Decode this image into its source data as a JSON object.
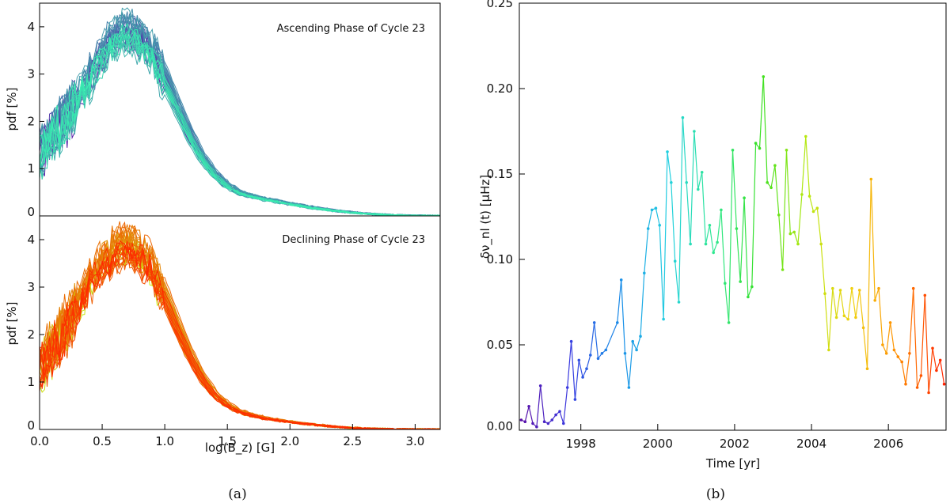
{
  "chart_data": [
    {
      "type": "line",
      "panel": "a-top",
      "annotation": "Ascending Phase of Cycle 23",
      "ylabel": "pdf [%]",
      "xlim": [
        0.0,
        3.2
      ],
      "ylim": [
        0,
        4.5
      ],
      "yticks": [
        "0",
        "1",
        "2",
        "3",
        "4"
      ],
      "color_range": [
        "#5a10a8",
        "#38f0b0"
      ],
      "curve_count": 32,
      "mean_curve": {
        "x": [
          0.0,
          0.1,
          0.2,
          0.3,
          0.4,
          0.5,
          0.6,
          0.7,
          0.8,
          0.9,
          1.0,
          1.1,
          1.2,
          1.3,
          1.4,
          1.5,
          1.6,
          1.7,
          1.8,
          2.0,
          2.2,
          2.4,
          2.6,
          2.8,
          3.0,
          3.2
        ],
        "y": [
          1.3,
          1.7,
          2.0,
          2.4,
          2.9,
          3.4,
          3.75,
          3.9,
          3.75,
          3.5,
          2.95,
          2.35,
          1.75,
          1.25,
          0.9,
          0.65,
          0.5,
          0.42,
          0.36,
          0.26,
          0.17,
          0.1,
          0.05,
          0.02,
          0.005,
          0.0
        ]
      }
    },
    {
      "type": "line",
      "panel": "a-bottom",
      "annotation": "Declining Phase of Cycle 23",
      "ylabel": "pdf [%]",
      "xlabel": "log(B_z) [G]",
      "xlim": [
        0.0,
        3.2
      ],
      "ylim": [
        0,
        4.5
      ],
      "xticks": [
        "0.0",
        "0.5",
        "1.0",
        "1.5",
        "2.0",
        "2.5",
        "3.0"
      ],
      "yticks": [
        "0",
        "1",
        "2",
        "3",
        "4"
      ],
      "color_range": [
        "#c8ea10",
        "#ff2800"
      ],
      "curve_count": 32,
      "mean_curve": {
        "x": [
          0.0,
          0.1,
          0.2,
          0.3,
          0.4,
          0.5,
          0.6,
          0.7,
          0.8,
          0.9,
          1.0,
          1.1,
          1.2,
          1.3,
          1.4,
          1.5,
          1.6,
          1.7,
          1.8,
          2.0,
          2.2,
          2.4,
          2.6,
          2.8,
          3.0,
          3.2
        ],
        "y": [
          1.25,
          1.7,
          2.1,
          2.6,
          3.1,
          3.5,
          3.8,
          3.9,
          3.75,
          3.4,
          2.85,
          2.2,
          1.6,
          1.1,
          0.75,
          0.52,
          0.38,
          0.3,
          0.24,
          0.16,
          0.1,
          0.05,
          0.02,
          0.008,
          0.002,
          0.0
        ]
      }
    },
    {
      "type": "line",
      "panel": "b",
      "xlabel": "Time [yr]",
      "ylabel": "δν_nl (t) [μHz]",
      "xlim": [
        1996.4,
        2007.5
      ],
      "ylim": [
        0,
        0.25
      ],
      "xticks": [
        "1998",
        "2000",
        "2002",
        "2004",
        "2006"
      ],
      "yticks": [
        "0.00",
        "0.05",
        "0.10",
        "0.15",
        "0.20",
        "0.25"
      ],
      "color_range": [
        "#5a10a8",
        "#ff2000"
      ],
      "x": [
        1996.45,
        1996.55,
        1996.65,
        1996.75,
        1996.85,
        1996.95,
        1997.05,
        1997.15,
        1997.25,
        1997.35,
        1997.45,
        1997.55,
        1997.65,
        1997.75,
        1997.85,
        1997.95,
        1998.05,
        1998.15,
        1998.25,
        1998.35,
        1998.45,
        1998.55,
        1998.65,
        1998.95,
        1999.05,
        1999.15,
        1999.25,
        1999.35,
        1999.45,
        1999.55,
        1999.65,
        1999.75,
        1999.85,
        1999.95,
        2000.05,
        2000.15,
        2000.25,
        2000.35,
        2000.45,
        2000.55,
        2000.65,
        2000.75,
        2000.85,
        2000.95,
        2001.05,
        2001.15,
        2001.25,
        2001.35,
        2001.45,
        2001.55,
        2001.65,
        2001.75,
        2001.85,
        2001.95,
        2002.05,
        2002.15,
        2002.25,
        2002.35,
        2002.45,
        2002.55,
        2002.65,
        2002.75,
        2002.85,
        2002.95,
        2003.05,
        2003.15,
        2003.25,
        2003.35,
        2003.45,
        2003.55,
        2003.65,
        2003.75,
        2003.85,
        2003.95,
        2004.05,
        2004.15,
        2004.25,
        2004.35,
        2004.45,
        2004.55,
        2004.65,
        2004.75,
        2004.85,
        2004.95,
        2005.05,
        2005.15,
        2005.25,
        2005.35,
        2005.45,
        2005.55,
        2005.65,
        2005.75,
        2005.85,
        2005.95,
        2006.05,
        2006.15,
        2006.25,
        2006.35,
        2006.45,
        2006.55,
        2006.65,
        2006.75,
        2006.85,
        2006.95,
        2007.05,
        2007.15,
        2007.25,
        2007.35,
        2007.45
      ],
      "y": [
        0.006,
        0.005,
        0.014,
        0.004,
        0.002,
        0.026,
        0.005,
        0.004,
        0.006,
        0.009,
        0.011,
        0.004,
        0.025,
        0.052,
        0.018,
        0.041,
        0.031,
        0.036,
        0.044,
        0.063,
        0.042,
        0.045,
        0.047,
        0.063,
        0.088,
        0.045,
        0.025,
        0.052,
        0.047,
        0.055,
        0.092,
        0.118,
        0.129,
        0.13,
        0.12,
        0.065,
        0.163,
        0.145,
        0.099,
        0.075,
        0.183,
        0.145,
        0.109,
        0.175,
        0.141,
        0.151,
        0.109,
        0.12,
        0.104,
        0.11,
        0.129,
        0.086,
        0.063,
        0.164,
        0.118,
        0.087,
        0.136,
        0.078,
        0.084,
        0.168,
        0.165,
        0.207,
        0.145,
        0.142,
        0.155,
        0.126,
        0.094,
        0.164,
        0.115,
        0.116,
        0.109,
        0.138,
        0.172,
        0.137,
        0.128,
        0.13,
        0.109,
        0.08,
        0.047,
        0.083,
        0.066,
        0.082,
        0.067,
        0.065,
        0.083,
        0.066,
        0.082,
        0.06,
        0.036,
        0.147,
        0.076,
        0.083,
        0.05,
        0.045,
        0.063,
        0.047,
        0.043,
        0.04,
        0.027,
        0.045,
        0.083,
        0.025,
        0.032,
        0.079,
        0.022,
        0.048,
        0.035,
        0.041,
        0.027
      ]
    }
  ],
  "captions": {
    "a": "(a)",
    "b": "(b)"
  }
}
